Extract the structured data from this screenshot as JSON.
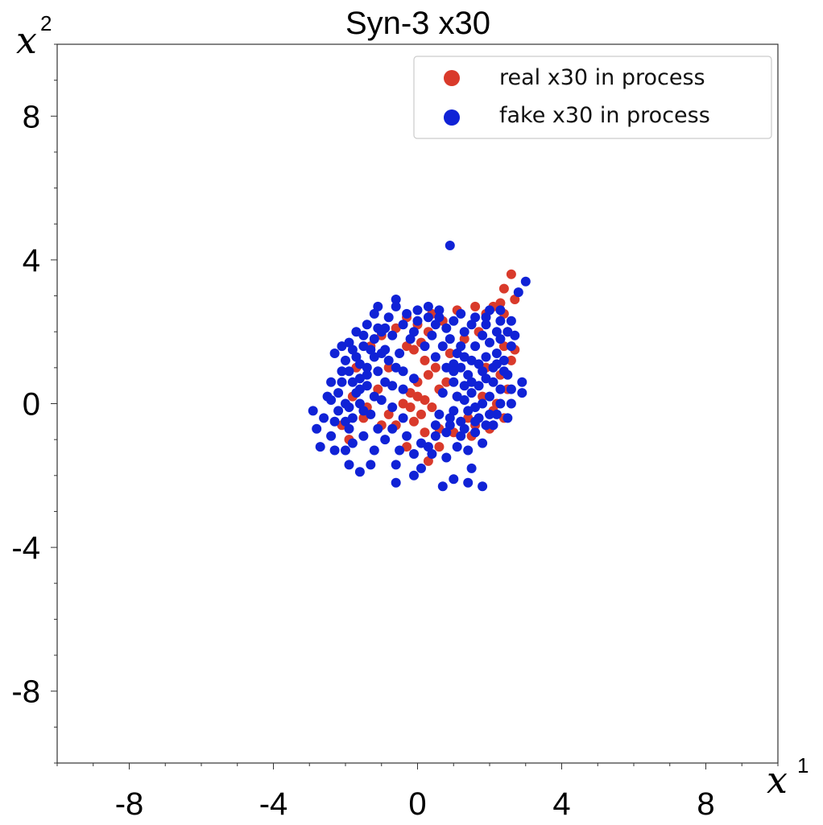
{
  "chart_data": {
    "type": "scatter",
    "title": "Syn-3 x30",
    "xlabel": "x",
    "xlabel_sup": "1",
    "ylabel": "x",
    "ylabel_sup": "2",
    "xlim": [
      -10,
      10
    ],
    "ylim": [
      -10,
      10
    ],
    "xticks": [
      -8,
      -4,
      0,
      4,
      8
    ],
    "yticks": [
      8,
      4,
      0,
      -4,
      -8
    ],
    "xtick_labels": [
      "-8",
      "-4",
      "0",
      "4",
      "8"
    ],
    "ytick_labels": [
      "8",
      "4",
      "0",
      "-4",
      "-8"
    ],
    "grid": false,
    "legend_position": "top-right",
    "series": [
      {
        "name": "real x30 in process",
        "color": "#d93a2b",
        "points": [
          [
            2.6,
            3.6
          ],
          [
            2.4,
            3.2
          ],
          [
            2.7,
            2.9
          ],
          [
            2.3,
            2.8
          ],
          [
            2.4,
            2.5
          ],
          [
            2.1,
            2.7
          ],
          [
            1.6,
            2.7
          ],
          [
            1.1,
            2.6
          ],
          [
            0.4,
            2.5
          ],
          [
            -0.3,
            2.4
          ],
          [
            0.0,
            2.2
          ],
          [
            0.3,
            2.0
          ],
          [
            0.1,
            1.7
          ],
          [
            -0.1,
            1.5
          ],
          [
            0.2,
            1.2
          ],
          [
            0.5,
            1.0
          ],
          [
            0.3,
            0.8
          ],
          [
            0.0,
            0.6
          ],
          [
            -0.2,
            0.3
          ],
          [
            0.0,
            0.2
          ],
          [
            0.2,
            0.1
          ],
          [
            -0.4,
            0.0
          ],
          [
            0.4,
            -0.1
          ],
          [
            0.1,
            -0.3
          ],
          [
            -0.1,
            -0.5
          ],
          [
            -0.8,
            -0.3
          ],
          [
            -0.6,
            -0.6
          ],
          [
            0.2,
            -0.8
          ],
          [
            0.6,
            -0.7
          ],
          [
            1.0,
            -0.8
          ],
          [
            1.5,
            -0.9
          ],
          [
            2.0,
            -0.7
          ],
          [
            2.4,
            -0.4
          ],
          [
            2.2,
            0.0
          ],
          [
            2.5,
            0.4
          ],
          [
            2.3,
            0.8
          ],
          [
            2.6,
            1.2
          ],
          [
            2.4,
            1.6
          ],
          [
            2.5,
            2.0
          ],
          [
            2.7,
            1.5
          ],
          [
            1.8,
            0.2
          ],
          [
            1.9,
            1.0
          ],
          [
            1.7,
            2.0
          ],
          [
            1.3,
            1.8
          ],
          [
            0.9,
            1.4
          ],
          [
            0.8,
            0.6
          ],
          [
            1.1,
            0.2
          ],
          [
            1.4,
            -0.4
          ],
          [
            0.6,
            -1.2
          ],
          [
            0.3,
            -1.6
          ],
          [
            -0.3,
            -1.2
          ],
          [
            -1.0,
            -0.6
          ],
          [
            -1.5,
            -0.4
          ],
          [
            -1.9,
            -1.0
          ],
          [
            -2.1,
            -0.6
          ],
          [
            -1.8,
            0.2
          ],
          [
            -1.7,
            1.0
          ],
          [
            -1.3,
            1.6
          ],
          [
            -1.0,
            1.9
          ],
          [
            -0.6,
            2.1
          ],
          [
            -0.3,
            1.6
          ],
          [
            -0.8,
            1.0
          ],
          [
            -1.1,
            0.4
          ],
          [
            -1.4,
            -0.1
          ],
          [
            0.7,
            2.3
          ],
          [
            1.9,
            2.5
          ],
          [
            2.1,
            -0.2
          ],
          [
            1.6,
            -0.6
          ],
          [
            -0.2,
            -0.1
          ],
          [
            0.6,
            0.4
          ]
        ]
      },
      {
        "name": "fake x30 in process",
        "color": "#1022d6",
        "points": [
          [
            0.9,
            4.4
          ],
          [
            3.0,
            3.4
          ],
          [
            2.8,
            3.1
          ],
          [
            2.9,
            0.6
          ],
          [
            2.9,
            0.3
          ],
          [
            2.5,
            -0.4
          ],
          [
            2.1,
            -0.6
          ],
          [
            1.8,
            -2.3
          ],
          [
            1.4,
            -2.2
          ],
          [
            1.0,
            -2.1
          ],
          [
            0.7,
            -2.3
          ],
          [
            0.1,
            -1.8
          ],
          [
            -0.1,
            -2.0
          ],
          [
            -0.6,
            -2.2
          ],
          [
            -1.3,
            -1.7
          ],
          [
            -1.6,
            -1.9
          ],
          [
            -1.9,
            -1.7
          ],
          [
            -2.3,
            -1.3
          ],
          [
            -2.4,
            -0.9
          ],
          [
            -2.8,
            -0.7
          ],
          [
            -2.9,
            -0.2
          ],
          [
            -2.7,
            -1.2
          ],
          [
            -2.2,
            -0.2
          ],
          [
            -2.5,
            0.2
          ],
          [
            -2.1,
            0.6
          ],
          [
            -2.3,
            1.4
          ],
          [
            -1.9,
            1.7
          ],
          [
            -1.7,
            2.0
          ],
          [
            -1.4,
            2.2
          ],
          [
            -1.1,
            2.7
          ],
          [
            -1.2,
            2.5
          ],
          [
            -0.6,
            2.9
          ],
          [
            -0.6,
            2.7
          ],
          [
            0.0,
            2.6
          ],
          [
            0.3,
            2.7
          ],
          [
            0.6,
            2.4
          ],
          [
            1.0,
            2.3
          ],
          [
            1.6,
            2.4
          ],
          [
            1.9,
            2.2
          ],
          [
            2.3,
            2.3
          ],
          [
            2.5,
            2.0
          ],
          [
            2.6,
            1.6
          ],
          [
            2.4,
            1.2
          ],
          [
            2.5,
            0.8
          ],
          [
            2.6,
            0.4
          ],
          [
            2.3,
            0.0
          ],
          [
            2.2,
            -0.3
          ],
          [
            1.9,
            -0.6
          ],
          [
            1.6,
            -0.8
          ],
          [
            1.2,
            -0.9
          ],
          [
            0.8,
            -0.8
          ],
          [
            0.5,
            -0.9
          ],
          [
            0.4,
            -1.4
          ],
          [
            0.1,
            -1.1
          ],
          [
            -0.3,
            -0.9
          ],
          [
            -0.5,
            -1.3
          ],
          [
            -0.9,
            -1.0
          ],
          [
            -1.2,
            -1.3
          ],
          [
            -1.5,
            -0.9
          ],
          [
            -1.8,
            -1.1
          ],
          [
            -2.0,
            -0.5
          ],
          [
            -1.9,
            -0.1
          ],
          [
            -1.7,
            0.3
          ],
          [
            -1.6,
            0.7
          ],
          [
            -1.4,
            1.0
          ],
          [
            -1.2,
            1.3
          ],
          [
            -0.9,
            1.5
          ],
          [
            -0.7,
            1.9
          ],
          [
            -1.0,
            2.0
          ],
          [
            -0.4,
            2.2
          ],
          [
            -0.2,
            1.8
          ],
          [
            -0.5,
            1.4
          ],
          [
            -0.8,
            1.2
          ],
          [
            -1.1,
            0.9
          ],
          [
            -1.4,
            0.5
          ],
          [
            -1.6,
            0.0
          ],
          [
            -1.3,
            -0.3
          ],
          [
            -1.0,
            0.1
          ],
          [
            -0.7,
            0.5
          ],
          [
            -0.4,
            0.9
          ],
          [
            -1.9,
            0.9
          ],
          [
            -2.0,
            1.2
          ],
          [
            -1.5,
            1.6
          ],
          [
            -1.2,
            1.8
          ],
          [
            -0.9,
            2.1
          ],
          [
            -2.2,
            0.3
          ],
          [
            -1.8,
            -0.4
          ],
          [
            -1.5,
            -0.2
          ],
          [
            -1.2,
            0.2
          ],
          [
            -0.9,
            0.6
          ],
          [
            -1.7,
            1.3
          ],
          [
            -1.3,
            1.5
          ],
          [
            -2.3,
            -0.5
          ],
          [
            -2.0,
            0.0
          ],
          [
            -1.6,
            0.4
          ],
          [
            0.9,
            1.8
          ],
          [
            1.1,
            1.4
          ],
          [
            1.2,
            1.0
          ],
          [
            1.0,
            0.6
          ],
          [
            1.1,
            0.2
          ],
          [
            1.0,
            -0.2
          ],
          [
            1.2,
            -0.5
          ],
          [
            1.4,
            -0.2
          ],
          [
            1.5,
            0.3
          ],
          [
            1.4,
            0.8
          ],
          [
            1.5,
            1.2
          ],
          [
            1.6,
            1.6
          ],
          [
            1.8,
            1.9
          ],
          [
            1.9,
            1.3
          ],
          [
            1.8,
            0.9
          ],
          [
            1.7,
            0.5
          ],
          [
            1.8,
            0.0
          ],
          [
            1.7,
            -0.4
          ],
          [
            2.0,
            0.2
          ],
          [
            2.1,
            0.6
          ],
          [
            2.1,
            1.0
          ],
          [
            2.2,
            1.4
          ],
          [
            2.0,
            1.7
          ],
          [
            1.3,
            2.0
          ],
          [
            0.8,
            2.1
          ],
          [
            0.8,
            1.0
          ],
          [
            0.7,
            0.3
          ],
          [
            0.6,
            -0.3
          ],
          [
            0.9,
            -0.6
          ],
          [
            1.3,
            -0.7
          ],
          [
            1.6,
            -0.5
          ],
          [
            2.0,
            -0.3
          ],
          [
            2.3,
            0.4
          ],
          [
            2.4,
            0.9
          ],
          [
            2.3,
            1.8
          ],
          [
            1.9,
            2.4
          ],
          [
            0.3,
            2.4
          ],
          [
            0.5,
            2.2
          ],
          [
            0.4,
            1.9
          ],
          [
            0.0,
            2.3
          ],
          [
            -0.1,
            2.0
          ],
          [
            0.2,
            1.6
          ],
          [
            0.5,
            1.3
          ],
          [
            0.7,
            1.6
          ],
          [
            1.0,
            1.1
          ],
          [
            1.3,
            0.5
          ],
          [
            1.6,
            -0.1
          ],
          [
            1.9,
            0.7
          ],
          [
            2.2,
            1.1
          ],
          [
            1.4,
            -1.3
          ],
          [
            1.8,
            -1.1
          ],
          [
            1.1,
            -1.2
          ],
          [
            0.8,
            -1.5
          ],
          [
            1.5,
            -1.8
          ],
          [
            -0.1,
            -1.4
          ],
          [
            -0.7,
            -0.7
          ],
          [
            -1.1,
            -0.7
          ],
          [
            -2.6,
            -0.4
          ],
          [
            -2.4,
            0.1
          ],
          [
            -2.1,
            0.9
          ],
          [
            -1.8,
            1.5
          ],
          [
            -2.1,
            1.6
          ],
          [
            -1.5,
            1.9
          ],
          [
            -1.1,
            2.1
          ],
          [
            -0.8,
            2.4
          ],
          [
            -0.3,
            2.5
          ],
          [
            0.6,
            2.6
          ],
          [
            1.2,
            2.5
          ],
          [
            2.0,
            2.6
          ],
          [
            2.3,
            2.6
          ],
          [
            1.5,
            2.2
          ],
          [
            1.7,
            1.1
          ],
          [
            1.3,
            0.1
          ],
          [
            0.9,
            -0.4
          ],
          [
            1.5,
            0.6
          ],
          [
            1.2,
            1.6
          ],
          [
            -1.6,
            1.1
          ],
          [
            -1.0,
            1.4
          ],
          [
            -1.4,
            0.8
          ],
          [
            -1.8,
            0.6
          ],
          [
            -0.6,
            1.0
          ],
          [
            -0.4,
            0.4
          ],
          [
            -0.1,
            0.7
          ],
          [
            -0.7,
            -0.1
          ],
          [
            -2.4,
            0.6
          ],
          [
            -0.4,
            -0.4
          ],
          [
            -0.6,
            -1.7
          ],
          [
            -1.9,
            -0.7
          ],
          [
            -2.0,
            -1.3
          ],
          [
            0.3,
            -1.2
          ],
          [
            0.5,
            -0.6
          ],
          [
            2.6,
            0.0
          ],
          [
            2.7,
            1.9
          ],
          [
            2.6,
            2.3
          ],
          [
            2.2,
            2.0
          ],
          [
            1.0,
            0.9
          ],
          [
            1.3,
            1.3
          ]
        ]
      }
    ]
  }
}
